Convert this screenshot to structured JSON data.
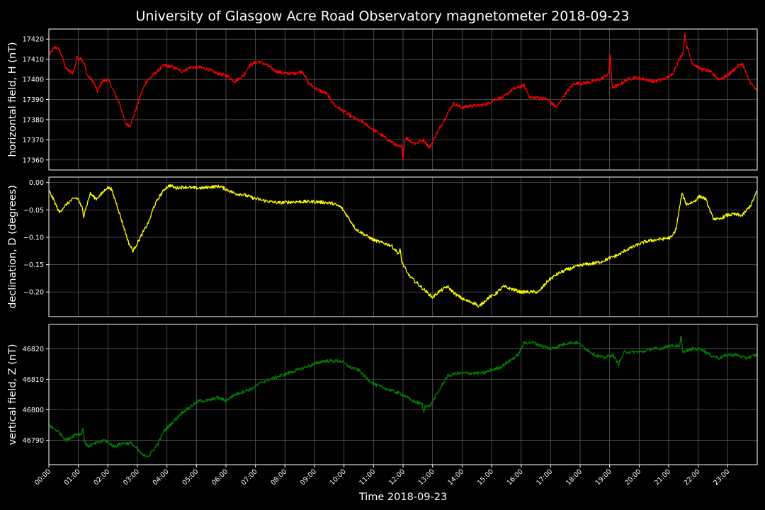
{
  "chart_data": {
    "title": "University of Glasgow Acre Road Observatory magnetometer 2018-09-23",
    "xlabel": "Time 2018-09-23",
    "type": "line",
    "grid": true,
    "x_range_hours": [
      0,
      24
    ],
    "x_ticks": [
      "00:00",
      "01:00",
      "02:00",
      "03:00",
      "04:00",
      "05:00",
      "06:00",
      "07:00",
      "08:00",
      "09:00",
      "10:00",
      "11:00",
      "12:00",
      "13:00",
      "14:00",
      "15:00",
      "16:00",
      "17:00",
      "18:00",
      "19:00",
      "20:00",
      "21:00",
      "22:00",
      "23:00"
    ],
    "panels": [
      {
        "ylabel": "horizontal field, H (nT)",
        "color": "#ff0000",
        "ylim": [
          17355,
          17425
        ],
        "y_ticks": [
          17360,
          17370,
          17380,
          17390,
          17400,
          17410,
          17420
        ],
        "y_tick_labels": [
          "17360",
          "17370",
          "17380",
          "17390",
          "17400",
          "17410",
          "17420"
        ],
        "points": [
          [
            0,
            17412
          ],
          [
            0.2,
            17416
          ],
          [
            0.35,
            17415
          ],
          [
            0.6,
            17405
          ],
          [
            0.8,
            17403
          ],
          [
            1.0,
            17410
          ],
          [
            1.1,
            17411
          ],
          [
            1.3,
            17402
          ],
          [
            1.5,
            17399
          ],
          [
            1.65,
            17394
          ],
          [
            1.8,
            17399
          ],
          [
            2.0,
            17400
          ],
          [
            2.2,
            17394
          ],
          [
            2.4,
            17388
          ],
          [
            2.6,
            17378
          ],
          [
            2.75,
            17377
          ],
          [
            2.9,
            17383
          ],
          [
            3.1,
            17392
          ],
          [
            3.3,
            17399
          ],
          [
            3.6,
            17403
          ],
          [
            3.9,
            17407
          ],
          [
            4.2,
            17406
          ],
          [
            4.5,
            17404
          ],
          [
            4.8,
            17406
          ],
          [
            5.1,
            17406
          ],
          [
            5.4,
            17405
          ],
          [
            5.7,
            17403
          ],
          [
            6.0,
            17402
          ],
          [
            6.3,
            17399
          ],
          [
            6.6,
            17402
          ],
          [
            6.8,
            17407
          ],
          [
            7.1,
            17409
          ],
          [
            7.4,
            17407
          ],
          [
            7.7,
            17404
          ],
          [
            8.0,
            17403
          ],
          [
            8.3,
            17403
          ],
          [
            8.6,
            17404
          ],
          [
            8.8,
            17398
          ],
          [
            9.1,
            17395
          ],
          [
            9.4,
            17393
          ],
          [
            9.7,
            17387
          ],
          [
            10.0,
            17384
          ],
          [
            10.3,
            17381
          ],
          [
            10.6,
            17379
          ],
          [
            10.9,
            17376
          ],
          [
            11.2,
            17373
          ],
          [
            11.5,
            17370
          ],
          [
            11.7,
            17368
          ],
          [
            11.9,
            17366
          ],
          [
            12.1,
            17371
          ],
          [
            12.4,
            17368
          ],
          [
            12.7,
            17370
          ],
          [
            12.9,
            17366
          ],
          [
            13.1,
            17372
          ],
          [
            13.4,
            17380
          ],
          [
            13.7,
            17388
          ],
          [
            14.0,
            17386
          ],
          [
            14.3,
            17387
          ],
          [
            14.6,
            17387
          ],
          [
            14.9,
            17388
          ],
          [
            15.1,
            17390
          ],
          [
            15.4,
            17391
          ],
          [
            15.7,
            17395
          ],
          [
            16.1,
            17397
          ],
          [
            16.3,
            17391
          ],
          [
            16.6,
            17391
          ],
          [
            16.9,
            17390
          ],
          [
            17.2,
            17386
          ],
          [
            17.5,
            17393
          ],
          [
            17.8,
            17398
          ],
          [
            18.1,
            17398
          ],
          [
            18.4,
            17399
          ],
          [
            18.7,
            17400
          ],
          [
            19.0,
            17403
          ],
          [
            19.1,
            17396
          ],
          [
            19.3,
            17397
          ],
          [
            19.6,
            17400
          ],
          [
            19.9,
            17401
          ],
          [
            20.2,
            17400
          ],
          [
            20.5,
            17399
          ],
          [
            20.8,
            17400
          ],
          [
            21.1,
            17402
          ],
          [
            21.4,
            17411
          ],
          [
            21.6,
            17417
          ],
          [
            21.8,
            17408
          ],
          [
            22.1,
            17405
          ],
          [
            22.4,
            17404
          ],
          [
            22.7,
            17400
          ],
          [
            23.0,
            17402
          ],
          [
            23.3,
            17406
          ],
          [
            23.5,
            17408
          ],
          [
            23.7,
            17400
          ],
          [
            24.0,
            17394
          ]
        ],
        "spikes": [
          [
            0.95,
            17412
          ],
          [
            1.2,
            17408
          ],
          [
            12.0,
            17360
          ],
          [
            12.6,
            17370
          ],
          [
            19.02,
            17414
          ],
          [
            21.55,
            17423
          ]
        ]
      },
      {
        "ylabel": "declination, D (degrees)",
        "color": "#ffff00",
        "ylim": [
          -0.245,
          0.01
        ],
        "y_ticks": [
          0,
          -0.05,
          -0.1,
          -0.15,
          -0.2
        ],
        "y_tick_labels": [
          "0.00",
          "−0.05",
          "−0.10",
          "−0.15",
          "−0.20"
        ],
        "points": [
          [
            0,
            -0.015
          ],
          [
            0.15,
            -0.03
          ],
          [
            0.35,
            -0.055
          ],
          [
            0.5,
            -0.045
          ],
          [
            0.7,
            -0.035
          ],
          [
            0.9,
            -0.028
          ],
          [
            1.0,
            -0.03
          ],
          [
            1.1,
            -0.045
          ],
          [
            1.25,
            -0.048
          ],
          [
            1.4,
            -0.02
          ],
          [
            1.6,
            -0.03
          ],
          [
            1.8,
            -0.02
          ],
          [
            1.95,
            -0.01
          ],
          [
            2.1,
            -0.01
          ],
          [
            2.3,
            -0.04
          ],
          [
            2.5,
            -0.075
          ],
          [
            2.7,
            -0.11
          ],
          [
            2.85,
            -0.125
          ],
          [
            3.0,
            -0.11
          ],
          [
            3.2,
            -0.09
          ],
          [
            3.4,
            -0.07
          ],
          [
            3.55,
            -0.045
          ],
          [
            3.75,
            -0.025
          ],
          [
            3.95,
            -0.01
          ],
          [
            4.1,
            -0.005
          ],
          [
            4.3,
            -0.01
          ],
          [
            4.6,
            -0.008
          ],
          [
            4.9,
            -0.01
          ],
          [
            5.2,
            -0.01
          ],
          [
            5.5,
            -0.008
          ],
          [
            5.8,
            -0.007
          ],
          [
            6.0,
            -0.012
          ],
          [
            6.3,
            -0.02
          ],
          [
            6.6,
            -0.022
          ],
          [
            6.9,
            -0.028
          ],
          [
            7.2,
            -0.032
          ],
          [
            7.5,
            -0.035
          ],
          [
            7.8,
            -0.037
          ],
          [
            8.1,
            -0.036
          ],
          [
            8.4,
            -0.035
          ],
          [
            8.7,
            -0.035
          ],
          [
            9.0,
            -0.035
          ],
          [
            9.3,
            -0.036
          ],
          [
            9.6,
            -0.038
          ],
          [
            9.9,
            -0.045
          ],
          [
            10.1,
            -0.06
          ],
          [
            10.4,
            -0.085
          ],
          [
            10.7,
            -0.095
          ],
          [
            11.0,
            -0.105
          ],
          [
            11.3,
            -0.11
          ],
          [
            11.6,
            -0.115
          ],
          [
            11.85,
            -0.13
          ],
          [
            12.0,
            -0.15
          ],
          [
            12.2,
            -0.17
          ],
          [
            12.4,
            -0.18
          ],
          [
            12.6,
            -0.19
          ],
          [
            12.8,
            -0.2
          ],
          [
            13.0,
            -0.21
          ],
          [
            13.2,
            -0.2
          ],
          [
            13.5,
            -0.19
          ],
          [
            13.8,
            -0.205
          ],
          [
            14.1,
            -0.215
          ],
          [
            14.4,
            -0.22
          ],
          [
            14.6,
            -0.225
          ],
          [
            14.9,
            -0.21
          ],
          [
            15.1,
            -0.205
          ],
          [
            15.4,
            -0.19
          ],
          [
            15.7,
            -0.195
          ],
          [
            16.0,
            -0.2
          ],
          [
            16.3,
            -0.2
          ],
          [
            16.6,
            -0.2
          ],
          [
            16.9,
            -0.18
          ],
          [
            17.2,
            -0.168
          ],
          [
            17.5,
            -0.16
          ],
          [
            17.8,
            -0.155
          ],
          [
            18.1,
            -0.15
          ],
          [
            18.4,
            -0.148
          ],
          [
            18.7,
            -0.145
          ],
          [
            19.0,
            -0.138
          ],
          [
            19.3,
            -0.132
          ],
          [
            19.6,
            -0.122
          ],
          [
            19.9,
            -0.115
          ],
          [
            20.2,
            -0.108
          ],
          [
            20.5,
            -0.105
          ],
          [
            20.8,
            -0.103
          ],
          [
            21.1,
            -0.1
          ],
          [
            21.25,
            -0.085
          ],
          [
            21.45,
            -0.02
          ],
          [
            21.6,
            -0.04
          ],
          [
            21.85,
            -0.035
          ],
          [
            22.05,
            -0.025
          ],
          [
            22.25,
            -0.03
          ],
          [
            22.5,
            -0.065
          ],
          [
            22.7,
            -0.068
          ],
          [
            22.95,
            -0.06
          ],
          [
            23.2,
            -0.058
          ],
          [
            23.5,
            -0.06
          ],
          [
            23.8,
            -0.04
          ],
          [
            24.0,
            -0.015
          ]
        ],
        "spikes": [
          [
            1.18,
            -0.065
          ],
          [
            11.9,
            -0.12
          ],
          [
            12.15,
            -0.165
          ],
          [
            14.55,
            -0.228
          ]
        ]
      },
      {
        "ylabel": "vertical field, Z (nT)",
        "color": "#008000",
        "ylim": [
          46782,
          46828
        ],
        "y_ticks": [
          46790,
          46800,
          46810,
          46820
        ],
        "y_tick_labels": [
          "46790",
          "46800",
          "46810",
          "46820"
        ],
        "points": [
          [
            0,
            46795
          ],
          [
            0.3,
            46793
          ],
          [
            0.6,
            46790
          ],
          [
            0.9,
            46792
          ],
          [
            1.1,
            46792
          ],
          [
            1.3,
            46788
          ],
          [
            1.6,
            46789
          ],
          [
            1.9,
            46790
          ],
          [
            2.2,
            46788
          ],
          [
            2.5,
            46789
          ],
          [
            2.8,
            46789
          ],
          [
            3.0,
            46787
          ],
          [
            3.2,
            46785
          ],
          [
            3.4,
            46785
          ],
          [
            3.7,
            46789
          ],
          [
            3.9,
            46793
          ],
          [
            4.2,
            46796
          ],
          [
            4.5,
            46799
          ],
          [
            4.8,
            46801
          ],
          [
            5.1,
            46803
          ],
          [
            5.4,
            46803
          ],
          [
            5.7,
            46804
          ],
          [
            6.0,
            46803
          ],
          [
            6.3,
            46805
          ],
          [
            6.6,
            46806
          ],
          [
            6.9,
            46807
          ],
          [
            7.2,
            46809
          ],
          [
            7.5,
            46810
          ],
          [
            7.8,
            46811
          ],
          [
            8.1,
            46812
          ],
          [
            8.4,
            46813
          ],
          [
            8.7,
            46814
          ],
          [
            9.0,
            46815
          ],
          [
            9.3,
            46816
          ],
          [
            9.6,
            46816
          ],
          [
            9.9,
            46816
          ],
          [
            10.2,
            46814
          ],
          [
            10.5,
            46813
          ],
          [
            10.8,
            46810
          ],
          [
            11.1,
            46808
          ],
          [
            11.4,
            46807
          ],
          [
            11.7,
            46806
          ],
          [
            12.0,
            46805
          ],
          [
            12.3,
            46803
          ],
          [
            12.6,
            46802
          ],
          [
            12.9,
            46801
          ],
          [
            13.2,
            46806
          ],
          [
            13.5,
            46811
          ],
          [
            13.8,
            46812
          ],
          [
            14.1,
            46812
          ],
          [
            14.4,
            46812
          ],
          [
            14.7,
            46812
          ],
          [
            15.0,
            46813
          ],
          [
            15.3,
            46814
          ],
          [
            15.6,
            46816
          ],
          [
            15.9,
            46818
          ],
          [
            16.1,
            46822
          ],
          [
            16.4,
            46822
          ],
          [
            16.7,
            46821
          ],
          [
            17.0,
            46820
          ],
          [
            17.3,
            46821
          ],
          [
            17.6,
            46822
          ],
          [
            17.9,
            46822
          ],
          [
            18.2,
            46820
          ],
          [
            18.5,
            46818
          ],
          [
            18.8,
            46817
          ],
          [
            19.1,
            46818
          ],
          [
            19.3,
            46815
          ],
          [
            19.5,
            46819
          ],
          [
            19.8,
            46819
          ],
          [
            20.1,
            46819
          ],
          [
            20.4,
            46820
          ],
          [
            20.7,
            46820
          ],
          [
            21.0,
            46821
          ],
          [
            21.3,
            46821
          ],
          [
            21.5,
            46819
          ],
          [
            21.8,
            46820
          ],
          [
            22.1,
            46820
          ],
          [
            22.4,
            46818
          ],
          [
            22.7,
            46817
          ],
          [
            23.0,
            46818
          ],
          [
            23.3,
            46818
          ],
          [
            23.6,
            46817
          ],
          [
            24.0,
            46818
          ]
        ],
        "spikes": [
          [
            1.15,
            46794
          ],
          [
            12.7,
            46799
          ],
          [
            21.42,
            46825
          ]
        ]
      }
    ]
  }
}
